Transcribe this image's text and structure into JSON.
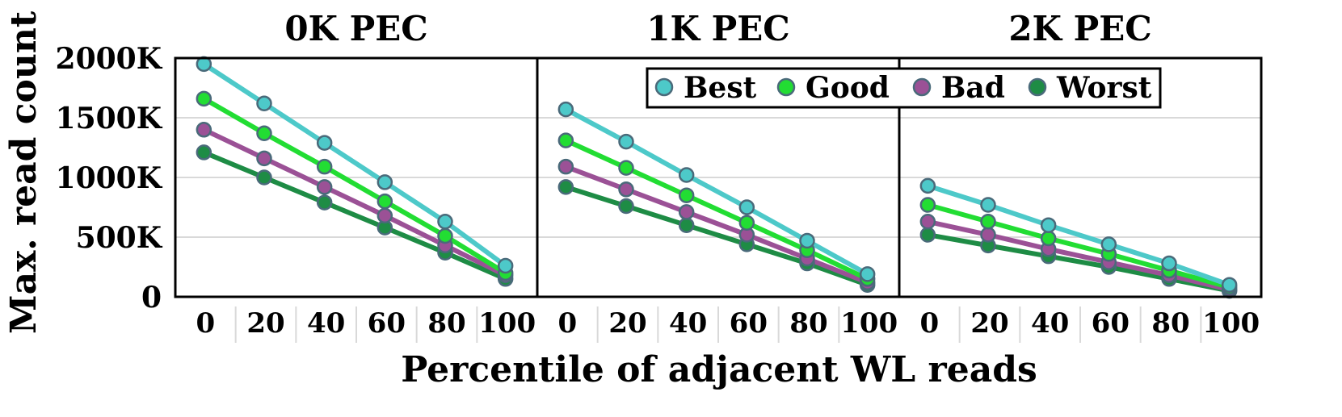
{
  "chart_data": {
    "type": "line",
    "ylabel": "Max. read count",
    "xlabel": "Percentile of adjacent WL reads",
    "ylim": [
      0,
      2000
    ],
    "yticks": [
      0,
      500,
      1000,
      1500,
      2000
    ],
    "ytick_labels": [
      "0",
      "500K",
      "1000K",
      "1500K",
      "2000K"
    ],
    "grid": true,
    "legend_position": "top-center",
    "categories": [
      "0",
      "20",
      "40",
      "60",
      "80",
      "100"
    ],
    "panels": [
      {
        "title": "0K PEC",
        "series": [
          {
            "name": "Best",
            "values": [
              1950,
              1620,
              1290,
              960,
              630,
              260
            ]
          },
          {
            "name": "Good",
            "values": [
              1660,
              1370,
              1090,
              800,
              510,
              200
            ]
          },
          {
            "name": "Bad",
            "values": [
              1400,
              1160,
              920,
              680,
              430,
              180
            ]
          },
          {
            "name": "Worst",
            "values": [
              1210,
              1000,
              790,
              580,
              370,
              150
            ]
          }
        ]
      },
      {
        "title": "1K PEC",
        "series": [
          {
            "name": "Best",
            "values": [
              1570,
              1300,
              1020,
              750,
              470,
              190
            ]
          },
          {
            "name": "Good",
            "values": [
              1310,
              1080,
              850,
              620,
              390,
              150
            ]
          },
          {
            "name": "Bad",
            "values": [
              1090,
              900,
              710,
              520,
              320,
              120
            ]
          },
          {
            "name": "Worst",
            "values": [
              920,
              760,
              600,
              440,
              280,
              100
            ]
          }
        ]
      },
      {
        "title": "2K PEC",
        "series": [
          {
            "name": "Best",
            "values": [
              930,
              770,
              600,
              440,
              280,
              100
            ]
          },
          {
            "name": "Good",
            "values": [
              770,
              630,
              490,
              360,
              220,
              80
            ]
          },
          {
            "name": "Bad",
            "values": [
              630,
              520,
              400,
              290,
              180,
              60
            ]
          },
          {
            "name": "Worst",
            "values": [
              520,
              430,
              340,
              250,
              150,
              50
            ]
          }
        ]
      }
    ],
    "series_colors": {
      "Best": "#4dc9c9",
      "Good": "#22dd33",
      "Bad": "#9b5196",
      "Worst": "#1e8c45"
    },
    "marker_edge_color": "#4a6a7a",
    "legend_entries": [
      "Best",
      "Good",
      "Bad",
      "Worst"
    ]
  }
}
